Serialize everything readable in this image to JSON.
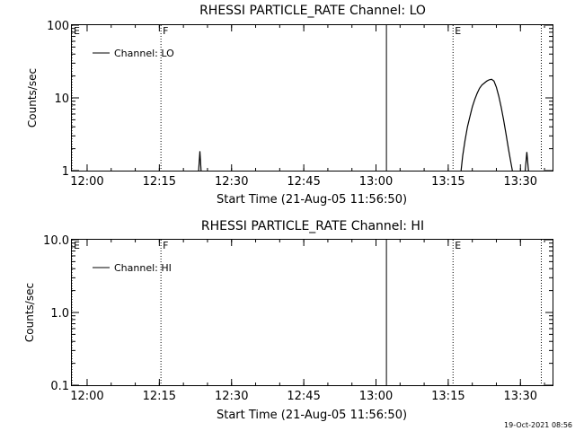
{
  "colors": {
    "background": "#ffffff",
    "ink": "#000000"
  },
  "footer": {
    "timestamp": "19-Oct-2021 08:56"
  },
  "chart_data": [
    {
      "type": "line",
      "title": "RHESSI PARTICLE_RATE Channel: LO",
      "xlabel": "Start Time (21-Aug-05 11:56:50)",
      "ylabel": "Counts/sec",
      "yscale": "log",
      "ylim": [
        1,
        100
      ],
      "xlim": [
        "11:56:50",
        "13:36:40"
      ],
      "x_ticks": [
        "12:00",
        "12:15",
        "12:30",
        "12:45",
        "13:00",
        "13:15",
        "13:30"
      ],
      "y_ticks": [
        "1",
        "10",
        "100"
      ],
      "legend": {
        "position": "top-left",
        "entries": [
          "Channel: LO"
        ]
      },
      "grid": false,
      "series": [
        {
          "name": "Channel: LO",
          "points": [
            [
              "12:23:10",
              1.0
            ],
            [
              "12:23:25",
              1.85
            ],
            [
              "12:23:40",
              1.0
            ],
            [
              "13:17:40",
              1.0
            ],
            [
              "13:18:00",
              1.6
            ],
            [
              "13:18:30",
              2.6
            ],
            [
              "13:19:00",
              4.0
            ],
            [
              "13:19:30",
              5.5
            ],
            [
              "13:20:00",
              7.5
            ],
            [
              "13:20:30",
              9.5
            ],
            [
              "13:21:00",
              11.5
            ],
            [
              "13:21:30",
              13.5
            ],
            [
              "13:22:00",
              15.0
            ],
            [
              "13:22:30",
              16.0
            ],
            [
              "13:23:00",
              17.0
            ],
            [
              "13:23:30",
              17.7
            ],
            [
              "13:24:00",
              18.0
            ],
            [
              "13:24:30",
              17.0
            ],
            [
              "13:25:00",
              14.0
            ],
            [
              "13:25:30",
              10.5
            ],
            [
              "13:26:00",
              7.5
            ],
            [
              "13:26:30",
              5.0
            ],
            [
              "13:27:00",
              3.2
            ],
            [
              "13:27:30",
              2.0
            ],
            [
              "13:28:00",
              1.3
            ],
            [
              "13:28:20",
              1.0
            ],
            [
              "13:31:00",
              1.0
            ],
            [
              "13:31:20",
              1.8
            ],
            [
              "13:31:40",
              1.0
            ]
          ]
        }
      ],
      "markers": [
        {
          "time": "11:56:50",
          "label": "E",
          "style": "dotted"
        },
        {
          "time": "12:15:20",
          "label": "F",
          "style": "dotted"
        },
        {
          "time": "13:02:10",
          "label": "",
          "style": "solid"
        },
        {
          "time": "13:16:00",
          "label": "E",
          "style": "dotted"
        },
        {
          "time": "13:34:20",
          "label": "",
          "style": "dotted"
        }
      ]
    },
    {
      "type": "line",
      "title": "RHESSI PARTICLE_RATE Channel: HI",
      "xlabel": "Start Time (21-Aug-05 11:56:50)",
      "ylabel": "Counts/sec",
      "yscale": "log",
      "ylim": [
        0.1,
        10.0
      ],
      "xlim": [
        "11:56:50",
        "13:36:40"
      ],
      "x_ticks": [
        "12:00",
        "12:15",
        "12:30",
        "12:45",
        "13:00",
        "13:15",
        "13:30"
      ],
      "y_ticks": [
        "0.1",
        "1.0",
        "10.0"
      ],
      "legend": {
        "position": "top-left",
        "entries": [
          "Channel: HI"
        ]
      },
      "grid": false,
      "series": [
        {
          "name": "Channel: HI",
          "points": []
        }
      ],
      "markers": [
        {
          "time": "11:56:50",
          "label": "E",
          "style": "dotted"
        },
        {
          "time": "12:15:20",
          "label": "F",
          "style": "dotted"
        },
        {
          "time": "13:02:10",
          "label": "",
          "style": "solid"
        },
        {
          "time": "13:16:00",
          "label": "E",
          "style": "dotted"
        },
        {
          "time": "13:34:20",
          "label": "",
          "style": "dotted"
        }
      ]
    }
  ]
}
